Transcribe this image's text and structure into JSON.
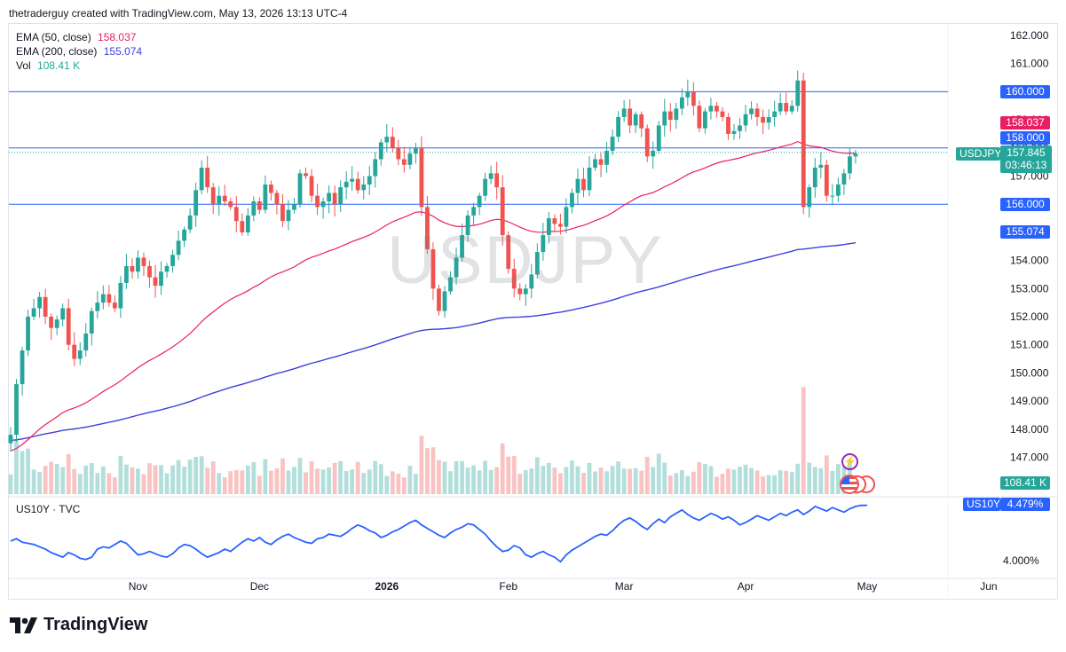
{
  "header": {
    "text": "thetraderguy created with TradingView.com, May 13, 2026 13:13 UTC-4"
  },
  "legend": {
    "ema50_label": "EMA (50, close)",
    "ema50_value": "158.037",
    "ema200_label": "EMA (200, close)",
    "ema200_value": "155.074",
    "vol_label": "Vol",
    "vol_value": "108.41 K"
  },
  "watermark": "USDJPY",
  "badges": {
    "level_160": "160.000",
    "ema50": "158.037",
    "level_158": "158.000",
    "symbol": "USDJPY",
    "price": "157.845",
    "countdown": "03:46:13",
    "level_156": "156.000",
    "ema200": "155.074",
    "volume": "108.41 K",
    "us10y_symbol": "US10Y",
    "us10y_value": "4.479%"
  },
  "lower_pane": {
    "title": "US10Y · TVC"
  },
  "colors": {
    "up": "#26a69a",
    "down": "#ef5350",
    "ema50": "#e91e63",
    "ema200": "#3f3fdc",
    "hline": "#2962ff",
    "vol_up": "#b2dfdb",
    "vol_down": "#f9c3c3",
    "us10y": "#2962ff"
  },
  "logo": {
    "text": "TradingView",
    "icon": "tradingview-logo-icon"
  },
  "chart_data": [
    {
      "type": "candlestick",
      "title": "USDJPY",
      "yticks": [
        "162.000",
        "161.000",
        "160.000",
        "159.000",
        "158.000",
        "157.000",
        "156.000",
        "155.000",
        "154.000",
        "153.000",
        "152.000",
        "151.000",
        "150.000",
        "149.000",
        "148.000",
        "147.000"
      ],
      "ylim": [
        146.6,
        162.0
      ],
      "xticks": [
        {
          "label": "Nov",
          "index": 22
        },
        {
          "label": "Dec",
          "index": 43
        },
        {
          "label": "2026",
          "index": 65
        },
        {
          "label": "Feb",
          "index": 86
        },
        {
          "label": "Mar",
          "index": 106
        },
        {
          "label": "Apr",
          "index": 127
        },
        {
          "label": "May",
          "index": 148
        },
        {
          "label": "Jun",
          "index": 169
        }
      ],
      "horizontal_levels": [
        160.0,
        158.0,
        156.0
      ],
      "last_price": 157.845,
      "close": [
        147.8,
        149.6,
        150.8,
        152.0,
        152.3,
        152.7,
        152.0,
        151.6,
        151.9,
        152.3,
        151.0,
        150.5,
        150.8,
        151.4,
        152.2,
        152.5,
        152.8,
        152.5,
        152.3,
        153.2,
        153.8,
        153.6,
        154.1,
        153.8,
        153.4,
        153.1,
        153.6,
        153.8,
        154.2,
        154.7,
        155.1,
        155.6,
        156.5,
        157.3,
        156.6,
        156.0,
        156.3,
        156.1,
        155.9,
        155.4,
        155.0,
        155.6,
        156.1,
        155.8,
        156.7,
        156.4,
        156.0,
        155.4,
        155.8,
        156.0,
        157.1,
        157.0,
        156.3,
        155.9,
        156.1,
        156.4,
        156.0,
        156.6,
        156.8,
        156.9,
        156.5,
        156.7,
        157.0,
        157.6,
        158.2,
        158.4,
        158.0,
        157.6,
        157.4,
        157.8,
        158.0,
        155.9,
        154.4,
        153.0,
        152.2,
        152.9,
        153.4,
        154.1,
        154.9,
        155.6,
        155.9,
        156.3,
        156.9,
        157.1,
        156.6,
        154.9,
        153.7,
        153.0,
        152.8,
        153.0,
        153.5,
        154.3,
        154.9,
        155.5,
        155.3,
        155.2,
        155.9,
        156.4,
        156.9,
        156.5,
        157.3,
        157.6,
        157.4,
        157.9,
        158.4,
        159.1,
        159.4,
        158.8,
        159.2,
        158.7,
        157.7,
        157.9,
        158.8,
        159.3,
        159.0,
        159.4,
        159.8,
        160.0,
        159.5,
        158.7,
        159.3,
        159.5,
        159.3,
        159.1,
        158.5,
        158.6,
        158.8,
        159.2,
        159.4,
        159.1,
        158.9,
        159.1,
        159.3,
        159.6,
        159.3,
        159.5,
        160.4,
        155.9,
        156.6,
        157.3,
        157.4,
        156.3,
        156.3,
        156.7,
        157.1,
        157.7,
        157.8
      ],
      "ema50_last": 158.037,
      "ema200_last": 155.074
    },
    {
      "type": "bar",
      "title": "Vol",
      "last_value": "108.41 K"
    },
    {
      "type": "line",
      "title": "US10Y · TVC",
      "yticks": [
        "4.000%"
      ],
      "last_value": "4.479%",
      "values": [
        4.17,
        4.19,
        4.16,
        4.15,
        4.14,
        4.12,
        4.1,
        4.07,
        4.05,
        4.03,
        4.07,
        4.05,
        4.02,
        4.01,
        4.03,
        4.1,
        4.12,
        4.11,
        4.14,
        4.17,
        4.15,
        4.1,
        4.05,
        4.06,
        4.08,
        4.06,
        4.04,
        4.03,
        4.06,
        4.11,
        4.14,
        4.13,
        4.1,
        4.06,
        4.03,
        4.05,
        4.07,
        4.1,
        4.08,
        4.12,
        4.16,
        4.19,
        4.17,
        4.2,
        4.16,
        4.14,
        4.18,
        4.21,
        4.23,
        4.2,
        4.18,
        4.16,
        4.15,
        4.19,
        4.2,
        4.23,
        4.22,
        4.21,
        4.24,
        4.28,
        4.31,
        4.29,
        4.26,
        4.24,
        4.2,
        4.22,
        4.25,
        4.27,
        4.3,
        4.33,
        4.35,
        4.31,
        4.28,
        4.25,
        4.22,
        4.2,
        4.24,
        4.27,
        4.29,
        4.32,
        4.31,
        4.27,
        4.23,
        4.17,
        4.12,
        4.08,
        4.09,
        4.13,
        4.11,
        4.05,
        4.03,
        4.06,
        4.08,
        4.05,
        4.03,
        3.99,
        4.05,
        4.09,
        4.12,
        4.15,
        4.18,
        4.21,
        4.23,
        4.22,
        4.26,
        4.31,
        4.35,
        4.37,
        4.34,
        4.3,
        4.27,
        4.32,
        4.36,
        4.33,
        4.38,
        4.41,
        4.44,
        4.4,
        4.37,
        4.35,
        4.38,
        4.41,
        4.39,
        4.36,
        4.38,
        4.35,
        4.31,
        4.33,
        4.36,
        4.39,
        4.37,
        4.35,
        4.38,
        4.41,
        4.39,
        4.42,
        4.44,
        4.4,
        4.43,
        4.47,
        4.45,
        4.43,
        4.46,
        4.44,
        4.42,
        4.45,
        4.47,
        4.48,
        4.479
      ]
    }
  ]
}
